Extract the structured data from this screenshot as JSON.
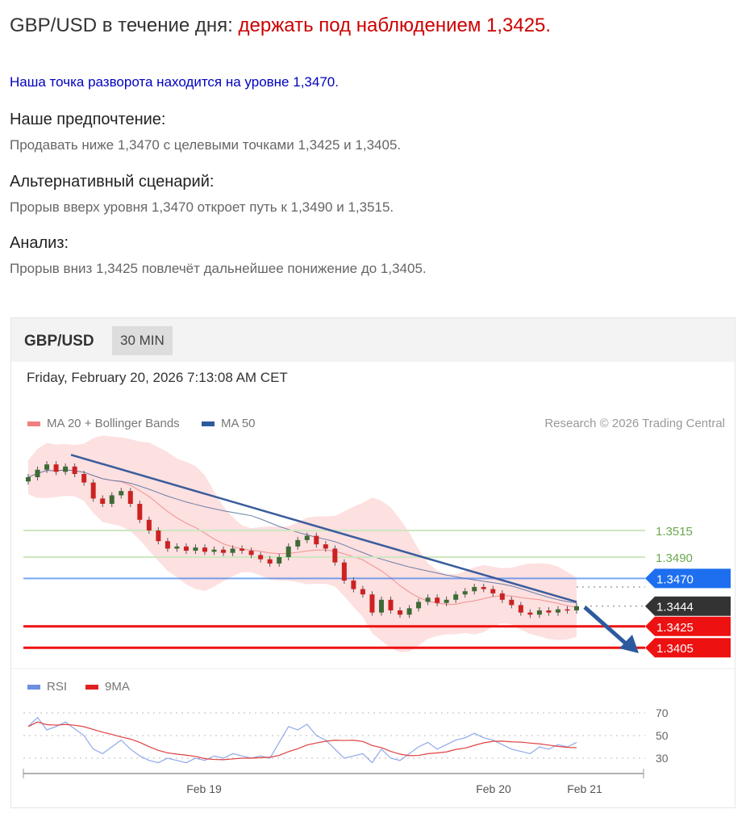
{
  "header": {
    "title_prefix": "GBP/USD в течение дня: ",
    "title_highlight": "держать под наблюдением 1,3425",
    "title_suffix": "."
  },
  "pivot": "Наша точка разворота находится на уровне 1,3470.",
  "sections": [
    {
      "heading": "Наше предпочтение:",
      "text": "Продавать ниже 1,3470 с целевыми точками 1,3425 и 1,3405."
    },
    {
      "heading": "Альтернативный сценарий:",
      "text": "Прорыв вверх уровня 1,3470 откроет путь к 1,3490 и 1,3515."
    },
    {
      "heading": "Анализ:",
      "text": "Прорыв вниз 1,3425 повлечёт дальнейшее понижение до 1,3405."
    }
  ],
  "chart": {
    "symbol": "GBP/USD",
    "timeframe": "30 MIN",
    "datetime": "Friday, February 20, 2026 7:13:08 AM CET",
    "legend": [
      {
        "label": "MA 20 + Bollinger Bands",
        "color": "#f08080"
      },
      {
        "label": "MA 50",
        "color": "#2d5a9e"
      }
    ],
    "copyright": "Research © 2026 Trading Central",
    "rsi_legend": [
      {
        "label": "RSI",
        "color": "#6f8fe0"
      },
      {
        "label": "9MA",
        "color": "#e02020"
      }
    ],
    "x_ticks": [
      "Feb 19",
      "Feb 20",
      "Feb 21"
    ],
    "rsi_ticks": [
      "70",
      "50",
      "30"
    ]
  },
  "chart_data": {
    "type": "candlestick",
    "levels": [
      {
        "value": "1.3515",
        "color": "#6aa84f",
        "style": "text"
      },
      {
        "value": "1.3490",
        "color": "#6aa84f",
        "style": "text"
      },
      {
        "value": "1.3470",
        "color": "#1e6ff0",
        "style": "tag"
      },
      {
        "value": "1.3444",
        "color": "#333333",
        "style": "tag"
      },
      {
        "value": "1.3425",
        "color": "#ee1111",
        "style": "tag"
      },
      {
        "value": "1.3405",
        "color": "#ee1111",
        "style": "tag"
      }
    ],
    "closes": [
      1.3565,
      1.3572,
      1.3577,
      1.357,
      1.3575,
      1.3568,
      1.356,
      1.3545,
      1.354,
      1.3548,
      1.3552,
      1.354,
      1.3525,
      1.3515,
      1.3505,
      1.3498,
      1.35,
      1.3496,
      1.3499,
      1.3495,
      1.3497,
      1.3494,
      1.3498,
      1.3496,
      1.3492,
      1.3488,
      1.3484,
      1.349,
      1.35,
      1.3506,
      1.351,
      1.3502,
      1.3498,
      1.3485,
      1.3468,
      1.346,
      1.3455,
      1.3438,
      1.345,
      1.344,
      1.3436,
      1.3442,
      1.3448,
      1.3452,
      1.3447,
      1.345,
      1.3455,
      1.3458,
      1.3462,
      1.346,
      1.3456,
      1.345,
      1.3445,
      1.3438,
      1.3436,
      1.344,
      1.3438,
      1.3441,
      1.344,
      1.3444
    ],
    "trendline": [
      1.3586,
      1.3448
    ],
    "rsi": [
      58,
      66,
      55,
      58,
      62,
      56,
      50,
      38,
      34,
      40,
      46,
      38,
      32,
      28,
      26,
      30,
      28,
      26,
      30,
      28,
      32,
      30,
      34,
      32,
      30,
      32,
      30,
      44,
      58,
      55,
      60,
      50,
      46,
      38,
      30,
      32,
      34,
      26,
      38,
      30,
      28,
      34,
      40,
      44,
      38,
      42,
      46,
      48,
      52,
      48,
      46,
      42,
      38,
      36,
      34,
      40,
      38,
      42,
      40,
      44
    ]
  }
}
